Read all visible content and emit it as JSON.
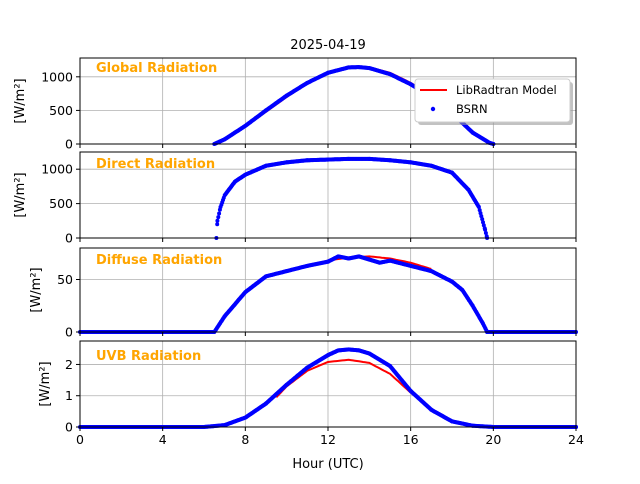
{
  "chart_data": {
    "type": "line",
    "title": "2025-04-19",
    "xlabel": "Hour (UTC)",
    "xlim": [
      0,
      24
    ],
    "xticks": [
      0,
      4,
      8,
      12,
      16,
      20,
      24
    ],
    "grid": true,
    "legend": {
      "placement": "top-right of first panel",
      "entries": [
        {
          "name": "LibRadtran Model",
          "color": "#ff0000",
          "kind": "line"
        },
        {
          "name": "BSRN",
          "color": "#0000ff",
          "kind": "marker"
        }
      ]
    },
    "colors": {
      "model": "#ff0000",
      "bsrn": "#0000ff",
      "panel_label": "#ffa500",
      "grid": "#b0b0b0"
    },
    "panels": [
      {
        "label": "Global Radiation",
        "ylabel": "[W/m²]",
        "ylim": [
          0,
          1280
        ],
        "yticks": [
          0,
          500,
          1000
        ],
        "model": [
          [
            6.5,
            0
          ],
          [
            7,
            70
          ],
          [
            8,
            260
          ],
          [
            9,
            480
          ],
          [
            10,
            700
          ],
          [
            11,
            900
          ],
          [
            12,
            1050
          ],
          [
            13,
            1140
          ],
          [
            13.5,
            1150
          ],
          [
            14,
            1140
          ],
          [
            15,
            1060
          ],
          [
            16,
            910
          ],
          [
            17,
            720
          ],
          [
            18,
            480
          ],
          [
            19,
            180
          ],
          [
            19.8,
            30
          ],
          [
            20,
            0
          ]
        ],
        "bsrn": [
          [
            6.5,
            0
          ],
          [
            7,
            70
          ],
          [
            8,
            270
          ],
          [
            9,
            500
          ],
          [
            10,
            720
          ],
          [
            11,
            910
          ],
          [
            12,
            1060
          ],
          [
            13,
            1140
          ],
          [
            13.5,
            1145
          ],
          [
            14,
            1130
          ],
          [
            15,
            1040
          ],
          [
            16,
            890
          ],
          [
            17,
            700
          ],
          [
            18,
            460
          ],
          [
            19,
            170
          ],
          [
            19.8,
            20
          ],
          [
            20,
            0
          ]
        ]
      },
      {
        "label": "Direct Radiation",
        "ylabel": "[W/m²]",
        "ylim": [
          0,
          1250
        ],
        "yticks": [
          0,
          500,
          1000
        ],
        "bsrn": [
          [
            6.6,
            0
          ],
          [
            6.65,
            250
          ],
          [
            6.8,
            450
          ],
          [
            7,
            620
          ],
          [
            7.5,
            820
          ],
          [
            8,
            920
          ],
          [
            9,
            1050
          ],
          [
            10,
            1100
          ],
          [
            11,
            1130
          ],
          [
            12,
            1140
          ],
          [
            13,
            1150
          ],
          [
            14,
            1150
          ],
          [
            15,
            1130
          ],
          [
            16,
            1100
          ],
          [
            17,
            1050
          ],
          [
            18,
            950
          ],
          [
            18.8,
            700
          ],
          [
            19.3,
            450
          ],
          [
            19.6,
            120
          ],
          [
            19.7,
            0
          ]
        ]
      },
      {
        "label": "Diffuse Radiation",
        "ylabel": "[W/m²]",
        "ylim": [
          0,
          80
        ],
        "yticks": [
          0,
          50
        ],
        "model": [
          [
            9.8,
            58
          ],
          [
            11,
            63
          ],
          [
            12,
            68
          ],
          [
            13,
            71
          ],
          [
            14,
            72
          ],
          [
            15,
            70
          ],
          [
            16,
            66
          ],
          [
            17,
            60
          ]
        ],
        "bsrn": [
          [
            0,
            0
          ],
          [
            6.5,
            0
          ],
          [
            7,
            15
          ],
          [
            8,
            38
          ],
          [
            9,
            53
          ],
          [
            10,
            58
          ],
          [
            11,
            63
          ],
          [
            12,
            67
          ],
          [
            12.5,
            72
          ],
          [
            13,
            70
          ],
          [
            13.5,
            72
          ],
          [
            14,
            69
          ],
          [
            14.5,
            66
          ],
          [
            15,
            68
          ],
          [
            16,
            63
          ],
          [
            17,
            58
          ],
          [
            18,
            48
          ],
          [
            18.5,
            40
          ],
          [
            19,
            25
          ],
          [
            19.5,
            8
          ],
          [
            19.7,
            0
          ],
          [
            24,
            0
          ]
        ]
      },
      {
        "label": "UVB Radiation",
        "ylabel": "[W/m²]",
        "ylim": [
          0,
          2.75
        ],
        "yticks": [
          0,
          1,
          2
        ],
        "model": [
          [
            9.5,
            0.95
          ],
          [
            10,
            1.3
          ],
          [
            11,
            1.8
          ],
          [
            12,
            2.08
          ],
          [
            13,
            2.15
          ],
          [
            14,
            2.05
          ],
          [
            15,
            1.7
          ],
          [
            16,
            1.1
          ],
          [
            16.5,
            0.85
          ]
        ],
        "bsrn": [
          [
            0,
            0
          ],
          [
            6,
            0
          ],
          [
            7,
            0.06
          ],
          [
            8,
            0.3
          ],
          [
            9,
            0.75
          ],
          [
            10,
            1.35
          ],
          [
            11,
            1.9
          ],
          [
            12,
            2.3
          ],
          [
            12.5,
            2.45
          ],
          [
            13,
            2.48
          ],
          [
            13.5,
            2.45
          ],
          [
            14,
            2.35
          ],
          [
            15,
            1.95
          ],
          [
            16,
            1.15
          ],
          [
            17,
            0.55
          ],
          [
            18,
            0.18
          ],
          [
            19,
            0.04
          ],
          [
            20,
            0
          ],
          [
            24,
            0
          ]
        ]
      }
    ]
  }
}
